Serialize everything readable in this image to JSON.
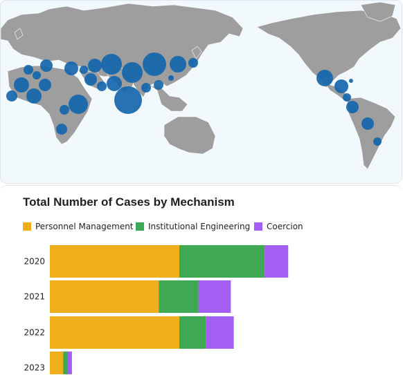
{
  "map": {
    "marker_color": "#1566ad",
    "land_color": "#9e9e9e",
    "ocean_color": "#f2f9fd"
  },
  "chart_data": {
    "type": "bar",
    "orientation": "horizontal",
    "stacked": true,
    "title": "Total Number of Cases by Mechanism",
    "xlabel": "",
    "ylabel": "",
    "categories": [
      "2020",
      "2021",
      "2022",
      "2023"
    ],
    "series": [
      {
        "name": "Personnel Management",
        "color": "#efaf1c",
        "values": [
          44,
          37,
          44,
          4.5
        ]
      },
      {
        "name": "Institutional Engineering",
        "color": "#3ea852",
        "values": [
          29,
          13.5,
          9,
          1.5
        ]
      },
      {
        "name": "Coercion",
        "color": "#a35ff2",
        "values": [
          8,
          11,
          9.5,
          1.5
        ]
      }
    ],
    "xlim": [
      0,
      120
    ],
    "legend_position": "top-left",
    "grid": false
  }
}
